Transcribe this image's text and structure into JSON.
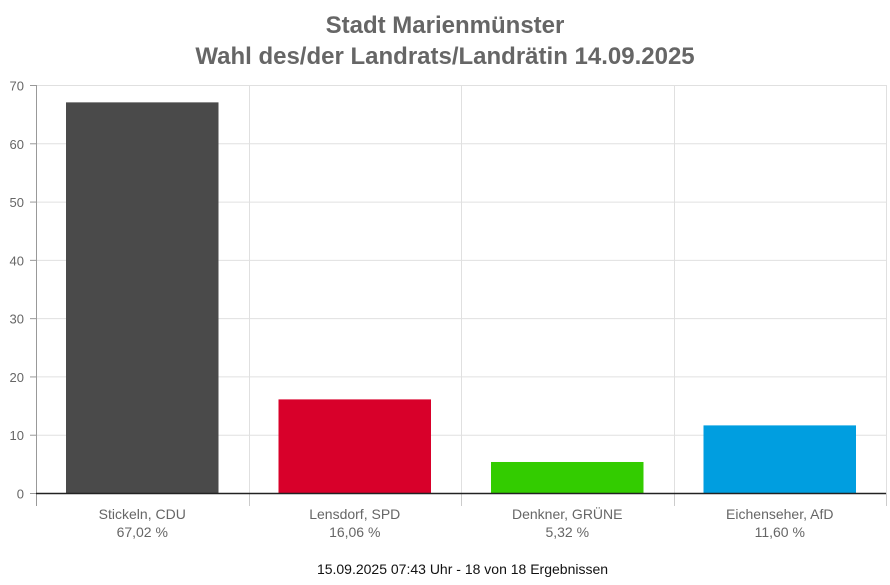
{
  "chart_data": {
    "type": "bar",
    "title": "Stadt Marienmünster",
    "subtitle": "Wahl des/der Landrats/Landrätin 14.09.2025",
    "categories": [
      "Stickeln, CDU",
      "Lensdorf, SPD",
      "Denkner, GRÜNE",
      "Eichenseher, AfD"
    ],
    "value_labels": [
      "67,02 %",
      "16,06 %",
      "5,32 %",
      "11,60 %"
    ],
    "values": [
      67.02,
      16.06,
      5.32,
      11.6
    ],
    "colors": [
      "#4a4a4a",
      "#d8002a",
      "#33cc00",
      "#009ee0"
    ],
    "ylim": [
      0,
      70
    ],
    "yticks": [
      0,
      10,
      20,
      30,
      40,
      50,
      60,
      70
    ],
    "xlabel": "",
    "ylabel": "",
    "grid": true
  },
  "footer": "15.09.2025 07:43 Uhr - 18 von 18 Ergebnissen"
}
